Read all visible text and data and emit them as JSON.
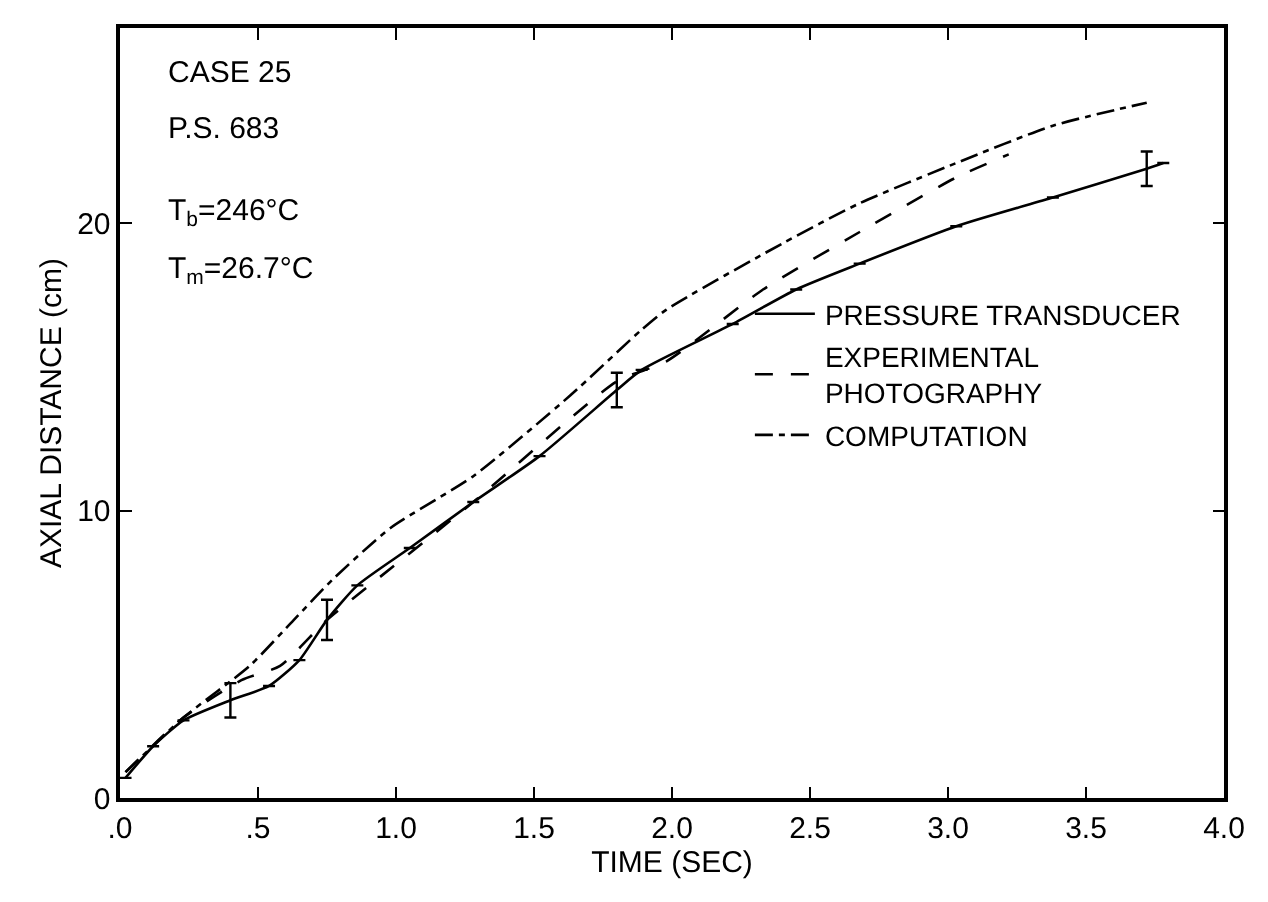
{
  "chart_data": {
    "type": "line",
    "xlabel": "TIME (SEC)",
    "ylabel": "AXIAL DISTANCE (cm)",
    "annotations": [
      "CASE 25",
      "P.S. 683",
      "T$_{b}$=246°C",
      "T$_{m}$=26.7°C"
    ],
    "xlim": [
      0,
      4.0
    ],
    "ylim": [
      0,
      26.8
    ],
    "xticks": [
      {
        "value": 0,
        "label": ".0"
      },
      {
        "value": 0.5,
        "label": ".5"
      },
      {
        "value": 1,
        "label": "1.0"
      },
      {
        "value": 1.5,
        "label": "1.5"
      },
      {
        "value": 2,
        "label": "2.0"
      },
      {
        "value": 2.5,
        "label": "2.5"
      },
      {
        "value": 3,
        "label": "3.0"
      },
      {
        "value": 3.5,
        "label": "3.5"
      },
      {
        "value": 4,
        "label": "4.0"
      }
    ],
    "yticks": [
      0,
      10,
      20
    ],
    "legend": "right",
    "marker": "none",
    "series": [
      {
        "name": "PRESSURE TRANSDUCER",
        "color": "#000000",
        "line_style": "solid",
        "x": [
          0.02,
          0.12,
          0.23,
          0.4,
          0.54,
          0.65,
          0.75,
          0.86,
          1.05,
          1.28,
          1.52,
          1.8,
          1.89,
          2.22,
          2.45,
          2.68,
          3.03,
          3.38,
          3.72,
          3.78
        ],
        "values": [
          0.7,
          1.8,
          2.7,
          3.4,
          3.9,
          4.8,
          6.2,
          7.4,
          8.7,
          10.3,
          11.9,
          14.2,
          14.9,
          16.5,
          17.7,
          18.6,
          19.9,
          20.9,
          21.9,
          22.1
        ],
        "errors": [
          null,
          null,
          null,
          0.6,
          null,
          null,
          0.7,
          null,
          null,
          null,
          null,
          0.6,
          null,
          null,
          null,
          null,
          null,
          null,
          0.6,
          null
        ]
      },
      {
        "name": "EXPERIMENTAL PHOTOGRAPHY",
        "color": "#000000",
        "line_style": "dashed",
        "x": [
          0.02,
          0.23,
          0.44,
          0.58,
          0.75,
          0.93,
          1.28,
          1.8,
          1.98,
          2.33,
          2.68,
          3.03,
          3.22
        ],
        "values": [
          0.9,
          2.8,
          4.1,
          4.6,
          6.2,
          7.6,
          10.3,
          14.5,
          15.2,
          17.7,
          19.7,
          21.6,
          22.4
        ]
      },
      {
        "name": "COMPUTATION",
        "color": "#000000",
        "line_style": "dashdot",
        "x": [
          0.02,
          0.23,
          0.47,
          0.63,
          0.77,
          0.98,
          1.28,
          1.63,
          1.89,
          1.98,
          2.4,
          2.68,
          3.03,
          3.38,
          3.72
        ],
        "values": [
          0.9,
          2.8,
          4.6,
          6.2,
          7.6,
          9.4,
          11.2,
          14.0,
          16.3,
          17.0,
          19.3,
          20.7,
          22.1,
          23.4,
          24.2
        ]
      }
    ]
  }
}
